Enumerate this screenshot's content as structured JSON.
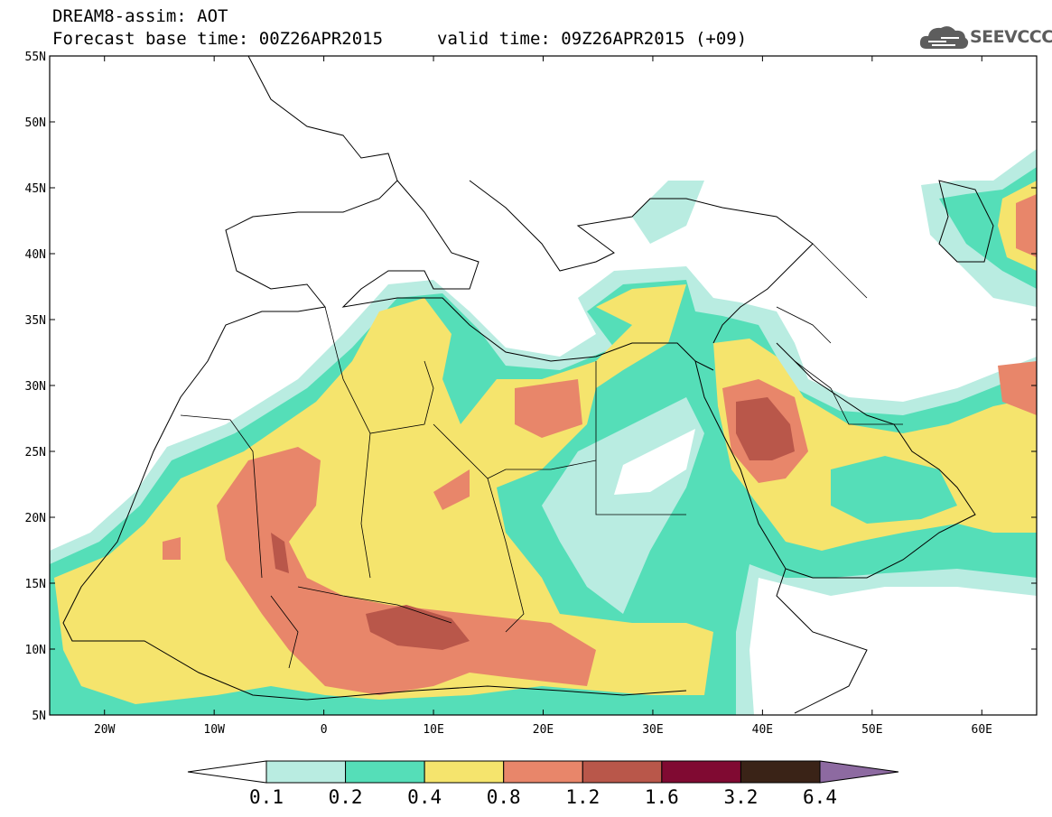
{
  "header": {
    "title_line1": "DREAM8-assim: AOT",
    "title_line2_left": "Forecast base time: 00Z26APR2015",
    "title_line2_right": "valid time: 09Z26APR2015 (+09)"
  },
  "logo": {
    "text": "SEEVCCC",
    "icon": "cloud-icon"
  },
  "map": {
    "lon_range": [
      -25,
      65
    ],
    "lat_range": [
      5,
      55
    ],
    "lat_ticks": [
      {
        "value": 55,
        "label": "55N"
      },
      {
        "value": 50,
        "label": "50N"
      },
      {
        "value": 45,
        "label": "45N"
      },
      {
        "value": 40,
        "label": "40N"
      },
      {
        "value": 35,
        "label": "35N"
      },
      {
        "value": 30,
        "label": "30N"
      },
      {
        "value": 25,
        "label": "25N"
      },
      {
        "value": 20,
        "label": "20N"
      },
      {
        "value": 15,
        "label": "15N"
      },
      {
        "value": 10,
        "label": "10N"
      },
      {
        "value": 5,
        "label": "5N"
      }
    ],
    "lon_ticks": [
      {
        "value": -20,
        "label": "20W"
      },
      {
        "value": -10,
        "label": "10W"
      },
      {
        "value": 0,
        "label": "0"
      },
      {
        "value": 10,
        "label": "10E"
      },
      {
        "value": 20,
        "label": "20E"
      },
      {
        "value": 30,
        "label": "30E"
      },
      {
        "value": 40,
        "label": "40E"
      },
      {
        "value": 50,
        "label": "50E"
      },
      {
        "value": 60,
        "label": "60E"
      }
    ]
  },
  "colorbar": {
    "colors": [
      "#ffffff",
      "#b9ece1",
      "#55deb8",
      "#f5e46d",
      "#e8866a",
      "#b9574a",
      "#800a32",
      "#3a2317",
      "#8d6aa1"
    ],
    "labels": [
      "0.1",
      "0.2",
      "0.4",
      "0.8",
      "1.2",
      "1.6",
      "3.2",
      "6.4"
    ]
  }
}
